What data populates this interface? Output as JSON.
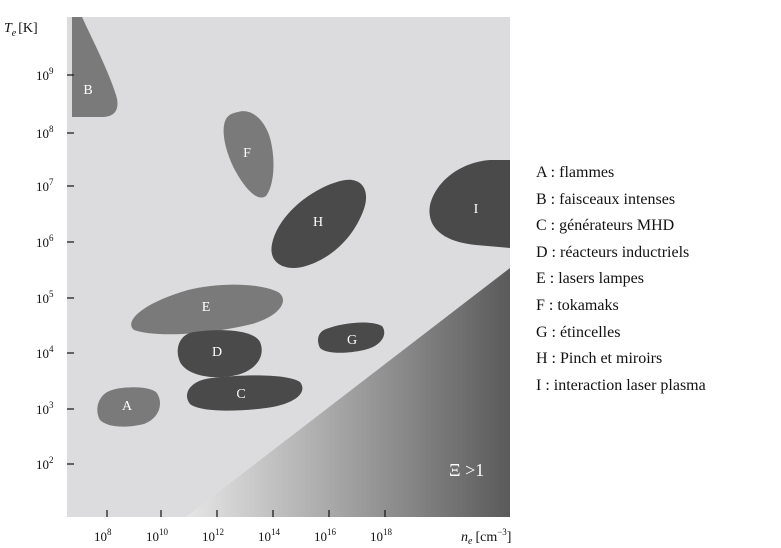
{
  "axes": {
    "y_title_symbol": "T",
    "y_title_sub": "e",
    "y_title_unit": "[K]",
    "x_title_symbol": "n",
    "x_title_sub": "e",
    "x_title_unit": "[cm",
    "x_title_unit_exp": "−3",
    "x_title_unit_close": "]",
    "y_ticks": [
      {
        "base": "10",
        "exp": "9"
      },
      {
        "base": "10",
        "exp": "8"
      },
      {
        "base": "10",
        "exp": "7"
      },
      {
        "base": "10",
        "exp": "6"
      },
      {
        "base": "10",
        "exp": "5"
      },
      {
        "base": "10",
        "exp": "4"
      },
      {
        "base": "10",
        "exp": "3"
      },
      {
        "base": "10",
        "exp": "2"
      }
    ],
    "x_ticks": [
      {
        "base": "10",
        "exp": "8"
      },
      {
        "base": "10",
        "exp": "10"
      },
      {
        "base": "10",
        "exp": "12"
      },
      {
        "base": "10",
        "exp": "14"
      },
      {
        "base": "10",
        "exp": "16"
      },
      {
        "base": "10",
        "exp": "18"
      }
    ]
  },
  "regions": [
    {
      "id": "A",
      "label": "A"
    },
    {
      "id": "B",
      "label": "B"
    },
    {
      "id": "C",
      "label": "C"
    },
    {
      "id": "D",
      "label": "D"
    },
    {
      "id": "E",
      "label": "E"
    },
    {
      "id": "F",
      "label": "F"
    },
    {
      "id": "G",
      "label": "G"
    },
    {
      "id": "H",
      "label": "H"
    },
    {
      "id": "I",
      "label": "I"
    }
  ],
  "xi_label": "Ξ >1",
  "legend": [
    "A : flammes",
    "B : faisceaux intenses",
    "C : générateurs MHD",
    "D : réacteurs inductriels",
    "E : lasers lampes",
    "F : tokamaks",
    "G : étincelles",
    "H : Pinch et miroirs",
    "I : interaction laser plasma"
  ],
  "colors": {
    "plot_background": "#dcdcde",
    "light_region": "#7a7a7a",
    "dark_region": "#4a4a4a",
    "degenerate_dark": "#5a5a5a"
  }
}
